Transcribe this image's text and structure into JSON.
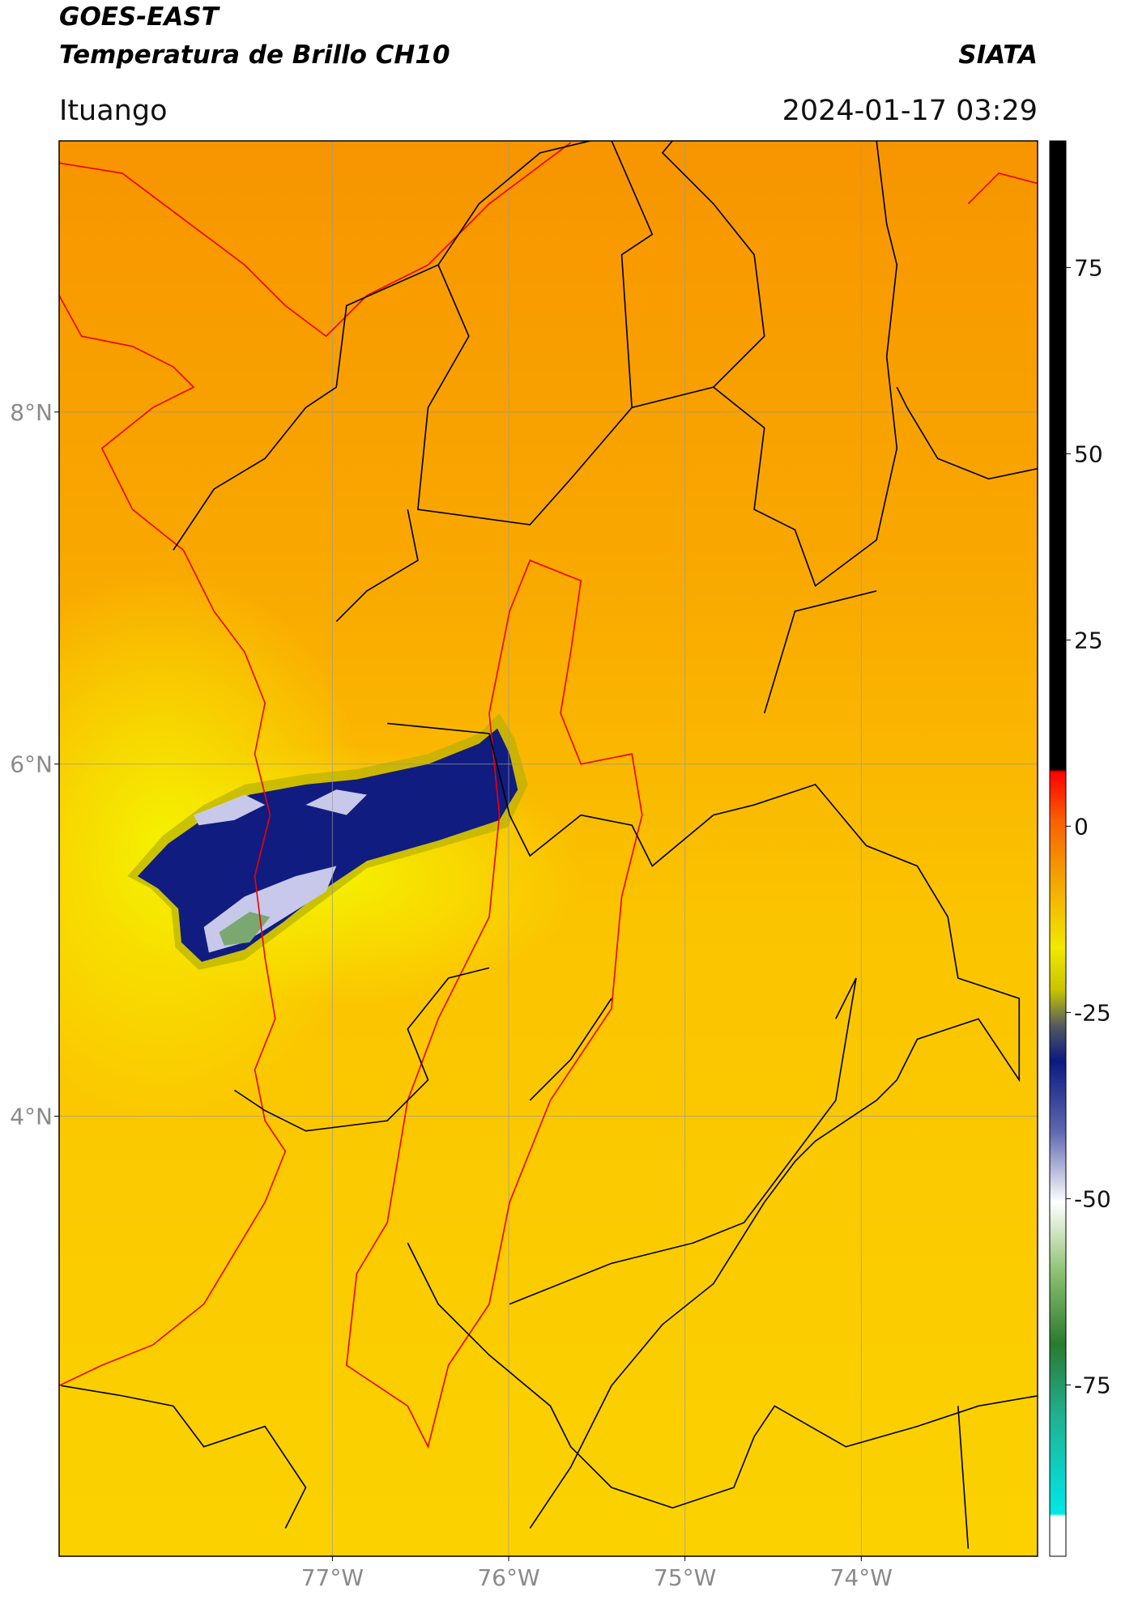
{
  "header": {
    "title": "GOES-EAST",
    "subtitle": "Temperatura de Brillo CH10",
    "credit": "SIATA",
    "location": "Ituango",
    "datetime": "2024-01-17 03:29"
  },
  "map": {
    "xlim": [
      -78.55,
      -73.0
    ],
    "ylim": [
      1.5,
      9.54
    ],
    "xticks": [
      {
        "value": -77,
        "label": "77°W"
      },
      {
        "value": -76,
        "label": "76°W"
      },
      {
        "value": -75,
        "label": "75°W"
      },
      {
        "value": -74,
        "label": "74°W"
      }
    ],
    "yticks": [
      {
        "value": 8,
        "label": "8°N"
      },
      {
        "value": 6,
        "label": "6°N"
      },
      {
        "value": 4,
        "label": "4°N"
      }
    ],
    "grid": true
  },
  "colorbar": {
    "clim": [
      -98,
      92
    ],
    "ticks": [
      75,
      50,
      25,
      0,
      -25,
      -50,
      -75
    ]
  }
}
